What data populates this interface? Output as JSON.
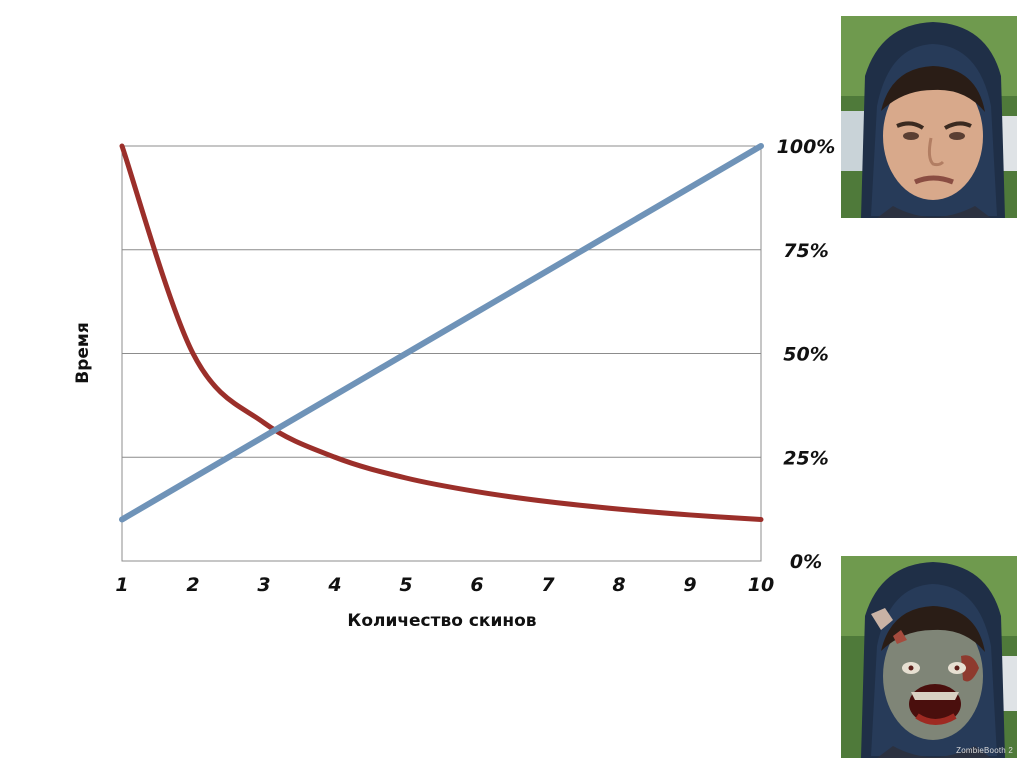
{
  "chart_data": {
    "type": "line",
    "xlabel": "Количество скинов",
    "ylabel": "Время",
    "x": [
      1,
      2,
      3,
      4,
      5,
      6,
      7,
      8,
      9,
      10
    ],
    "xlim": [
      1,
      10
    ],
    "ylim": [
      0,
      100
    ],
    "y_right_ticks": [
      "0%",
      "25%",
      "50%",
      "75%",
      "100%"
    ],
    "grid": true,
    "series": [
      {
        "color": "#9b2f2a",
        "values": [
          100,
          50,
          33.3,
          25,
          20,
          16.7,
          14.3,
          12.5,
          11.1,
          10
        ]
      },
      {
        "color": "#6f93b8",
        "values": [
          10,
          20,
          30,
          40,
          50,
          60,
          70,
          80,
          90,
          100
        ]
      }
    ]
  },
  "images": {
    "human_photo_icon": "person-in-hood-photo",
    "zombie_photo_icon": "zombie-face-photo",
    "zombie_watermark": "ZombieBooth 2"
  }
}
